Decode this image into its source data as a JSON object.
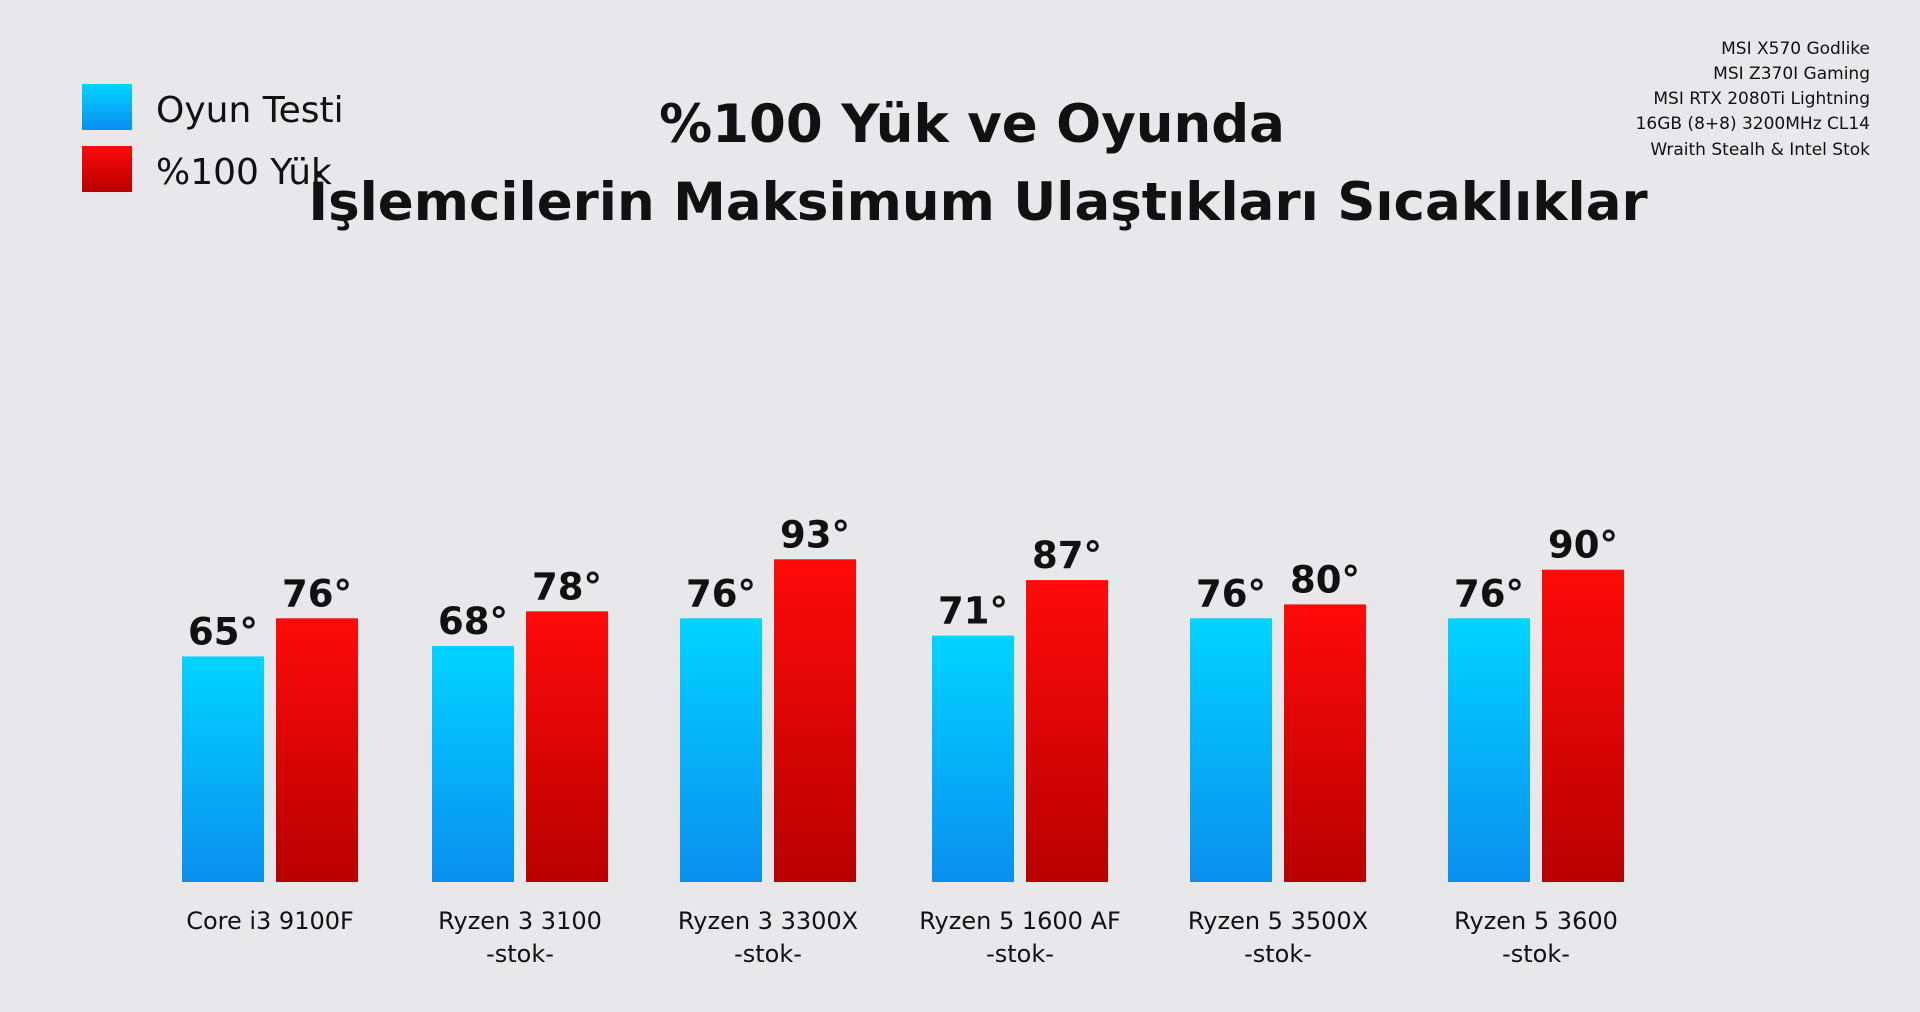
{
  "title": [
    "%100 Yük ve Oyunda",
    "İşlemcilerin Maksimum Ulaştıkları Sıcaklıklar"
  ],
  "specs": [
    "MSI X570 Godlike",
    "MSI Z370I Gaming",
    "MSI RTX 2080Ti Lightning",
    "16GB (8+8) 3200MHz CL14",
    "Wraith Stealh & Intel Stok"
  ],
  "colors": {
    "oyun_top": "#00d4ff",
    "oyun_bottom": "#0a8ff0",
    "yuk_top": "#ff0a0a",
    "yuk_bottom": "#b80000",
    "background": "#e8e7e9"
  },
  "chart_data": {
    "type": "bar",
    "title": "%100 Yük ve Oyunda İşlemcilerin Maksimum Ulaştıkları Sıcaklıklar",
    "unit": "°",
    "categories": [
      [
        "Core i3 9100F"
      ],
      [
        "Ryzen 3 3100",
        "-stok-"
      ],
      [
        "Ryzen 3 3300X",
        "-stok-"
      ],
      [
        "Ryzen 5 1600 AF",
        "-stok-"
      ],
      [
        "Ryzen 5 3500X",
        "-stok-"
      ],
      [
        "Ryzen 5 3600",
        "-stok-"
      ]
    ],
    "series": [
      {
        "name": "Oyun Testi",
        "values": [
          65,
          68,
          76,
          71,
          76,
          76
        ]
      },
      {
        "name": "%100 Yük",
        "values": [
          76,
          78,
          93,
          87,
          80,
          90
        ]
      }
    ],
    "legend_position": "top-left",
    "grid": false,
    "axes_visible": false
  }
}
